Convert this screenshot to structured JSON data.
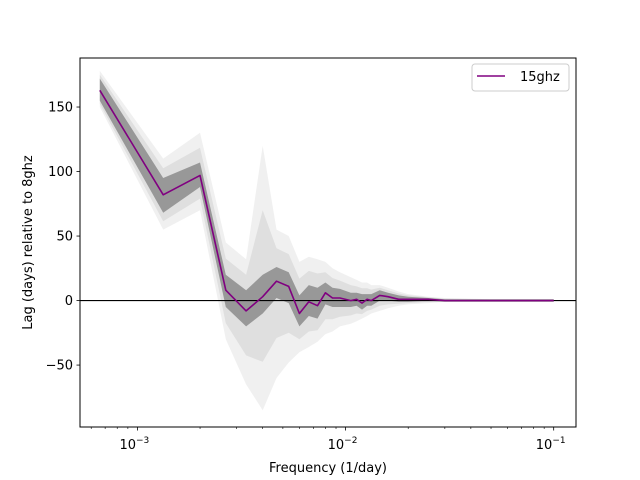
{
  "chart_data": {
    "type": "line",
    "title": "",
    "xlabel": "Frequency (1/day)",
    "ylabel": "Lag (days) relative to 8ghz",
    "xscale": "log",
    "xlim": [
      0.00053,
      0.128
    ],
    "ylim": [
      -98,
      188
    ],
    "x_ticks": [
      {
        "value": 0.001,
        "base": "10",
        "exp": "−3"
      },
      {
        "value": 0.01,
        "base": "10",
        "exp": "−2"
      },
      {
        "value": 0.1,
        "base": "10",
        "exp": "−1"
      }
    ],
    "y_ticks": [
      {
        "value": -50,
        "label": "−50"
      },
      {
        "value": 0,
        "label": "0"
      },
      {
        "value": 50,
        "label": "50"
      },
      {
        "value": 100,
        "label": "100"
      },
      {
        "value": 150,
        "label": "150"
      }
    ],
    "reference_line": {
      "y": 0,
      "color": "#000000"
    },
    "series": [
      {
        "name": "15ghz",
        "color": "#800080",
        "x": [
          0.00066,
          0.00133,
          0.002,
          0.00266,
          0.00333,
          0.004,
          0.00466,
          0.00533,
          0.006,
          0.00666,
          0.00733,
          0.008,
          0.00866,
          0.0094,
          0.0106,
          0.0113,
          0.012,
          0.0127,
          0.0133,
          0.0146,
          0.016,
          0.018,
          0.02,
          0.025,
          0.03,
          0.05,
          0.09,
          0.1
        ],
        "y": [
          163,
          82,
          97,
          8,
          -8,
          3,
          15,
          11,
          -10,
          -1,
          -4,
          6,
          2,
          2,
          0,
          1,
          -2,
          1,
          0,
          4,
          3,
          1,
          1,
          1,
          0,
          0,
          0,
          0
        ]
      }
    ],
    "uncertainty_band": {
      "color": "#808080",
      "description_free": true,
      "upper": [
        172,
        95,
        107,
        20,
        8,
        20,
        26,
        22,
        4,
        12,
        10,
        14,
        10,
        9,
        6,
        6,
        5,
        5,
        5,
        8,
        6,
        4,
        3,
        2,
        1,
        1,
        1,
        1
      ],
      "lower": [
        155,
        68,
        88,
        -5,
        -20,
        -10,
        2,
        -2,
        -20,
        -12,
        -14,
        -3,
        -5,
        -5,
        -5,
        -4,
        -7,
        -4,
        -4,
        0,
        0,
        -1,
        -1,
        0,
        -1,
        -1,
        -1,
        -1
      ],
      "outer_upper": [
        178,
        110,
        130,
        45,
        32,
        120,
        55,
        50,
        30,
        34,
        32,
        30,
        25,
        22,
        18,
        16,
        14,
        14,
        12,
        12,
        10,
        7,
        5,
        3,
        2,
        1,
        1,
        1
      ],
      "outer_lower": [
        150,
        55,
        70,
        -30,
        -65,
        -85,
        -60,
        -48,
        -40,
        -36,
        -32,
        -26,
        -24,
        -20,
        -18,
        -16,
        -14,
        -12,
        -10,
        -8,
        -6,
        -4,
        -3,
        -2,
        -1,
        -1,
        -1,
        -1
      ]
    },
    "legend": {
      "position": "top-right",
      "entries": [
        "15ghz"
      ]
    },
    "grid": false
  }
}
